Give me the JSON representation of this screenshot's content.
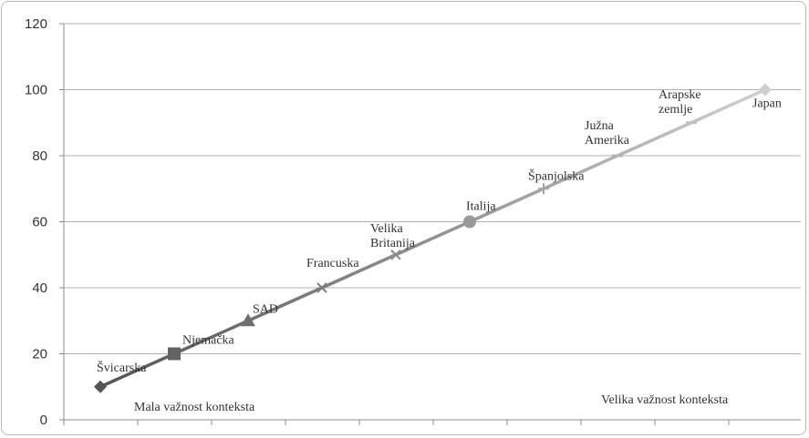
{
  "chart_data": {
    "type": "line",
    "title": "",
    "xlabel": "",
    "ylabel": "",
    "ylim": [
      0,
      120
    ],
    "yticks": [
      0,
      20,
      40,
      60,
      80,
      100,
      120
    ],
    "grid": "horizontal",
    "legend": "none",
    "points": [
      {
        "label_lines": [
          "Švicarska"
        ],
        "value": 10,
        "marker": "diamond"
      },
      {
        "label_lines": [
          "Njemačka"
        ],
        "value": 20,
        "marker": "square"
      },
      {
        "label_lines": [
          "SAD"
        ],
        "value": 30,
        "marker": "triangle"
      },
      {
        "label_lines": [
          "Francuska"
        ],
        "value": 40,
        "marker": "x"
      },
      {
        "label_lines": [
          "Velika",
          "Britanija"
        ],
        "value": 50,
        "marker": "x"
      },
      {
        "label_lines": [
          "Italija"
        ],
        "value": 60,
        "marker": "circle"
      },
      {
        "label_lines": [
          "Španjolska"
        ],
        "value": 70,
        "marker": "plus"
      },
      {
        "label_lines": [
          "Južna",
          "Amerika"
        ],
        "value": 80,
        "marker": "dash"
      },
      {
        "label_lines": [
          "Arapske",
          "zemlje"
        ],
        "value": 90,
        "marker": "dash"
      },
      {
        "label_lines": [
          "Japan"
        ],
        "value": 100,
        "marker": "diamond"
      }
    ],
    "annotations": [
      {
        "text": "Mala važnost konteksta"
      },
      {
        "text": "Velika važnost konteksta"
      }
    ],
    "colors": {
      "line_start": "#555555",
      "line_end": "#cfcfcf",
      "grid": "#b3b3b3",
      "axis": "#8c8c8c"
    }
  }
}
